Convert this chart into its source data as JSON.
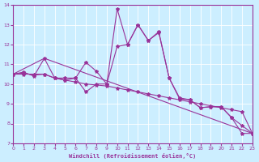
{
  "xlabel": "Windchill (Refroidissement éolien,°C)",
  "xlim": [
    0,
    23
  ],
  "ylim": [
    7,
    14
  ],
  "yticks": [
    7,
    8,
    9,
    10,
    11,
    12,
    13,
    14
  ],
  "xticks": [
    0,
    1,
    2,
    3,
    4,
    5,
    6,
    7,
    8,
    9,
    10,
    11,
    12,
    13,
    14,
    15,
    16,
    17,
    18,
    19,
    20,
    21,
    22,
    23
  ],
  "line_color": "#993399",
  "bg_color": "#cceeff",
  "line1_x": [
    0,
    1,
    2,
    3,
    4,
    5,
    6,
    7,
    8,
    9,
    10,
    11,
    12,
    13,
    14,
    15,
    16,
    17,
    18,
    19,
    20,
    21,
    22,
    23
  ],
  "line1_y": [
    10.5,
    10.6,
    10.4,
    11.3,
    10.3,
    10.3,
    10.3,
    9.6,
    10.0,
    10.0,
    13.8,
    12.0,
    13.0,
    12.2,
    12.6,
    10.3,
    9.3,
    9.2,
    8.8,
    8.85,
    8.85,
    8.3,
    7.5,
    7.5
  ],
  "line2_x": [
    0,
    1,
    2,
    3,
    4,
    5,
    6,
    7,
    8,
    9,
    10,
    11,
    12,
    13,
    14,
    15,
    16,
    17,
    18,
    19,
    20,
    21,
    22,
    23
  ],
  "line2_y": [
    10.5,
    10.5,
    10.5,
    10.5,
    10.3,
    10.2,
    10.1,
    10.0,
    9.95,
    9.9,
    9.8,
    9.7,
    9.6,
    9.5,
    9.4,
    9.3,
    9.2,
    9.1,
    9.0,
    8.9,
    8.8,
    8.7,
    8.6,
    7.5
  ],
  "line3_x": [
    0,
    3,
    23
  ],
  "line3_y": [
    10.5,
    11.3,
    7.5
  ],
  "line4_x": [
    0,
    1,
    2,
    3,
    4,
    5,
    6,
    7,
    8,
    9,
    10,
    11,
    12,
    13,
    14,
    15,
    16,
    17,
    18,
    19,
    20,
    21,
    22,
    23
  ],
  "line4_y": [
    10.5,
    10.55,
    10.45,
    10.5,
    10.3,
    10.2,
    10.3,
    11.1,
    10.65,
    10.0,
    11.9,
    12.0,
    13.0,
    12.2,
    12.65,
    10.3,
    9.25,
    9.2,
    8.8,
    8.85,
    8.85,
    8.3,
    7.9,
    7.5
  ]
}
